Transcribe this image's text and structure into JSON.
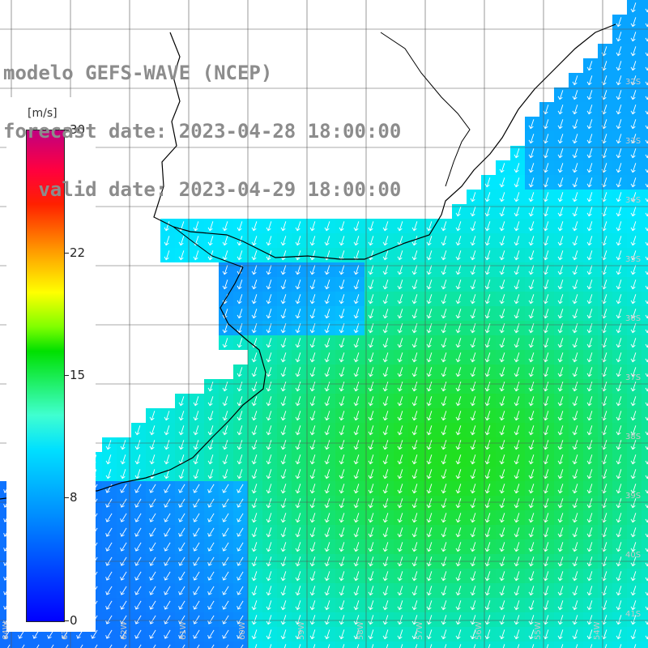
{
  "title": {
    "line1": "modelo GEFS-WAVE (NCEP)",
    "line2": "forecast date: 2023-04-28 18:00:00",
    "line3": "   valid date: 2023-04-29 18:00:00"
  },
  "colorbar": {
    "unit": "[m/s]",
    "ticks": [
      "30",
      "22",
      "15",
      "8",
      "0"
    ],
    "range": [
      0,
      30
    ]
  },
  "map": {
    "lat_labels": [
      "32S",
      "33S",
      "34S",
      "35S",
      "36S",
      "37S",
      "38S",
      "39S",
      "40S",
      "41S"
    ],
    "lon_labels": [
      "64W",
      "63W",
      "62W",
      "61W",
      "60W",
      "59W",
      "58W",
      "57W",
      "56W",
      "55W",
      "54W"
    ],
    "colors": {
      "land": "#ffffff",
      "grid": "#555555",
      "coast": "#000000",
      "low_wind": "#1060ff",
      "mid_wind": "#00e8ff",
      "high_wind": "#20e020",
      "arrow": "#ffffff"
    }
  }
}
